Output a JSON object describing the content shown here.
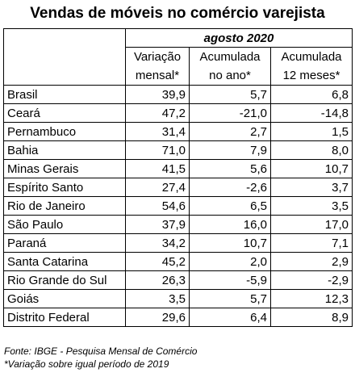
{
  "title": "Vendas de móveis no comércio varejista",
  "period": "agosto 2020",
  "headers": {
    "col1": [
      "Variação",
      "mensal*"
    ],
    "col2": [
      "Acumulada",
      "no ano*"
    ],
    "col3": [
      "Acumulada",
      "12 meses*"
    ]
  },
  "rows": [
    {
      "name": "Brasil",
      "mensal": "39,9",
      "ano": "5,7",
      "meses12": "6,8"
    },
    {
      "name": "Ceará",
      "mensal": "47,2",
      "ano": "-21,0",
      "meses12": "-14,8"
    },
    {
      "name": "Pernambuco",
      "mensal": "31,4",
      "ano": "2,7",
      "meses12": "1,5"
    },
    {
      "name": "Bahia",
      "mensal": "71,0",
      "ano": "7,9",
      "meses12": "8,0"
    },
    {
      "name": "Minas Gerais",
      "mensal": "41,5",
      "ano": "5,6",
      "meses12": "10,7"
    },
    {
      "name": "Espírito Santo",
      "mensal": "27,4",
      "ano": "-2,6",
      "meses12": "3,7"
    },
    {
      "name": "Rio de Janeiro",
      "mensal": "54,6",
      "ano": "6,5",
      "meses12": "3,5"
    },
    {
      "name": "São Paulo",
      "mensal": "37,9",
      "ano": "16,0",
      "meses12": "17,0"
    },
    {
      "name": "Paraná",
      "mensal": "34,2",
      "ano": "10,7",
      "meses12": "7,1"
    },
    {
      "name": "Santa Catarina",
      "mensal": "45,2",
      "ano": "2,0",
      "meses12": "2,9"
    },
    {
      "name": "Rio Grande do Sul",
      "mensal": "26,3",
      "ano": "-5,9",
      "meses12": "-2,9"
    },
    {
      "name": "Goiás",
      "mensal": "3,5",
      "ano": "5,7",
      "meses12": "12,3"
    },
    {
      "name": "Distrito Federal",
      "mensal": "29,6",
      "ano": "6,4",
      "meses12": "8,9"
    }
  ],
  "footnotes": {
    "source": "Fonte: IBGE - Pesquisa Mensal de Comércio",
    "note": "*Variação sobre igual período de 2019"
  }
}
